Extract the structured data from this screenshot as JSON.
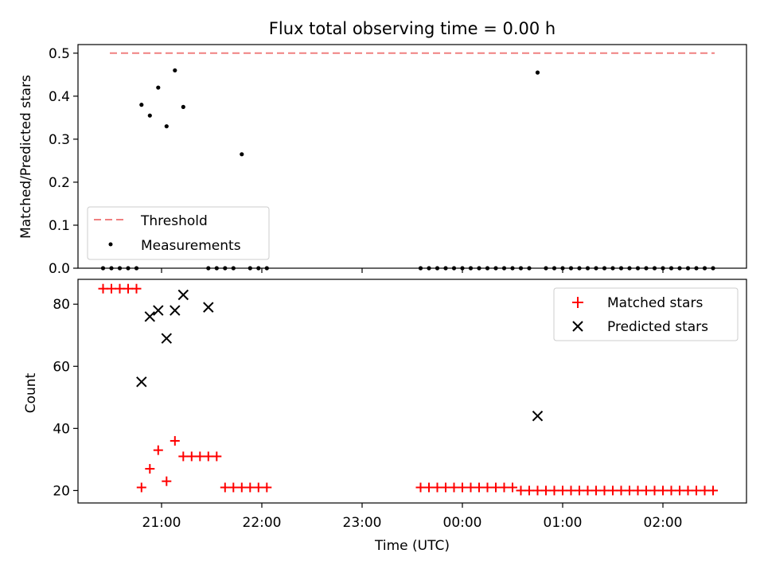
{
  "chart_data": [
    {
      "type": "scatter",
      "title": "Flux total observing time = 0.00 h",
      "xlabel": "",
      "ylabel": "Matched/Predicted stars",
      "ylim": [
        0,
        0.52
      ],
      "yticks": [
        "0.0",
        "0.1",
        "0.2",
        "0.3",
        "0.4",
        "0.5"
      ],
      "legend_placement": "lower-left",
      "threshold": {
        "name": "Threshold",
        "value": 0.5,
        "color": "#f08080",
        "style": "dashed"
      },
      "series": [
        {
          "name": "Measurements",
          "color": "#000000",
          "marker": "dot",
          "x": [
            "20:25",
            "20:30",
            "20:35",
            "20:40",
            "20:45",
            "20:48",
            "20:53",
            "20:58",
            "21:03",
            "21:08",
            "21:13",
            "21:28",
            "21:33",
            "21:38",
            "21:43",
            "21:48",
            "21:53",
            "21:58",
            "22:03",
            "23:35",
            "23:40",
            "23:45",
            "23:50",
            "23:55",
            "00:00",
            "00:05",
            "00:10",
            "00:15",
            "00:20",
            "00:25",
            "00:30",
            "00:35",
            "00:40",
            "00:45",
            "00:50",
            "00:55",
            "01:00",
            "01:05",
            "01:10",
            "01:15",
            "01:20",
            "01:25",
            "01:30",
            "01:35",
            "01:40",
            "01:45",
            "01:50",
            "01:55",
            "02:00",
            "02:05",
            "02:10",
            "02:15",
            "02:20",
            "02:25",
            "02:30"
          ],
          "y": [
            0,
            0,
            0,
            0,
            0,
            0.38,
            0.355,
            0.42,
            0.33,
            0.46,
            0.375,
            0,
            0,
            0,
            0,
            0.265,
            0,
            0,
            0,
            0,
            0,
            0,
            0,
            0,
            0,
            0,
            0,
            0,
            0,
            0,
            0,
            0,
            0,
            0.455,
            0,
            0,
            0,
            0,
            0,
            0,
            0,
            0,
            0,
            0,
            0,
            0,
            0,
            0,
            0,
            0,
            0,
            0,
            0,
            0,
            0
          ]
        }
      ]
    },
    {
      "type": "scatter",
      "title": "",
      "xlabel": "Time (UTC)",
      "ylabel": "Count",
      "ylim": [
        16,
        88
      ],
      "yticks": [
        "20",
        "40",
        "60",
        "80"
      ],
      "xticks": [
        "21:00",
        "22:00",
        "23:00",
        "00:00",
        "01:00",
        "02:00"
      ],
      "legend_placement": "top-right",
      "series": [
        {
          "name": "Matched stars",
          "color": "#ff0000",
          "marker": "plus",
          "x": [
            "20:25",
            "20:30",
            "20:35",
            "20:40",
            "20:45",
            "20:48",
            "20:53",
            "20:58",
            "21:03",
            "21:08",
            "21:13",
            "21:18",
            "21:23",
            "21:28",
            "21:33",
            "21:38",
            "21:43",
            "21:48",
            "21:53",
            "21:58",
            "22:03",
            "23:35",
            "23:40",
            "23:45",
            "23:50",
            "23:55",
            "00:00",
            "00:05",
            "00:10",
            "00:15",
            "00:20",
            "00:25",
            "00:30",
            "00:35",
            "00:40",
            "00:45",
            "00:50",
            "00:55",
            "01:00",
            "01:05",
            "01:10",
            "01:15",
            "01:20",
            "01:25",
            "01:30",
            "01:35",
            "01:40",
            "01:45",
            "01:50",
            "01:55",
            "02:00",
            "02:05",
            "02:10",
            "02:15",
            "02:20",
            "02:25",
            "02:30"
          ],
          "y": [
            85,
            85,
            85,
            85,
            85,
            21,
            27,
            33,
            23,
            36,
            31,
            31,
            31,
            31,
            31,
            21,
            21,
            21,
            21,
            21,
            21,
            21,
            21,
            21,
            21,
            21,
            21,
            21,
            21,
            21,
            21,
            21,
            21,
            20,
            20,
            20,
            20,
            20,
            20,
            20,
            20,
            20,
            20,
            20,
            20,
            20,
            20,
            20,
            20,
            20,
            20,
            20,
            20,
            20,
            20,
            20,
            20
          ]
        },
        {
          "name": "Predicted stars",
          "color": "#000000",
          "marker": "x",
          "x": [
            "20:48",
            "20:53",
            "20:58",
            "21:03",
            "21:08",
            "21:13",
            "21:28",
            "00:45"
          ],
          "y": [
            55,
            76,
            78,
            69,
            78,
            83,
            79,
            44
          ]
        }
      ]
    }
  ]
}
